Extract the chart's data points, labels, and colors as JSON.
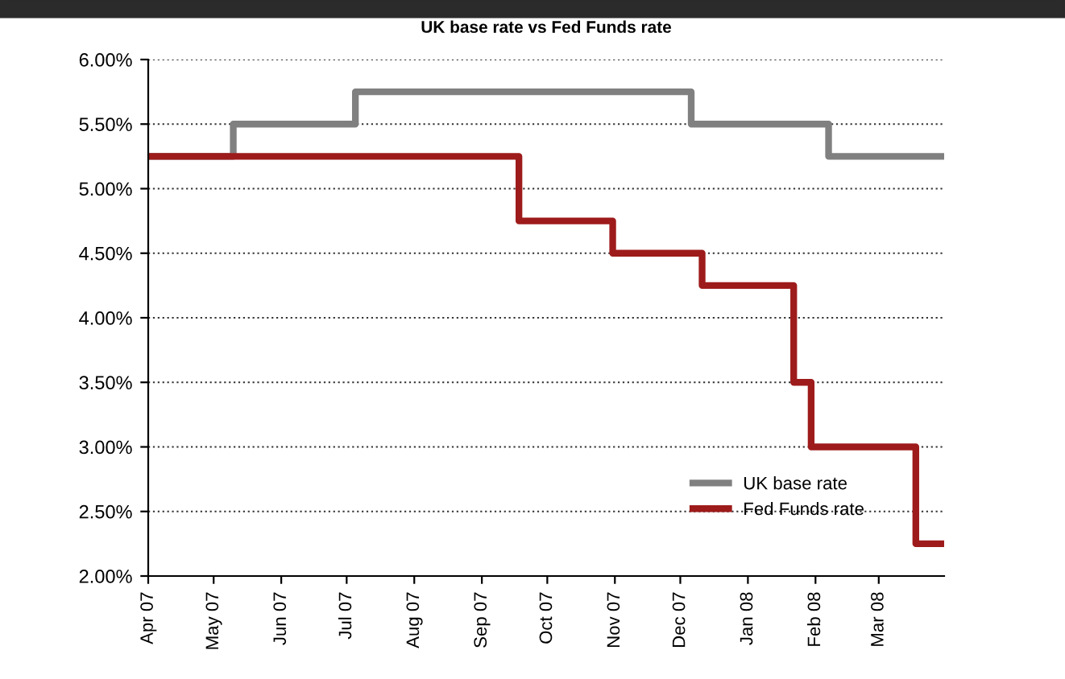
{
  "chart_data": {
    "type": "step",
    "title": "UK base rate vs Fed Funds rate",
    "series": [
      {
        "name": "UK base rate",
        "color": "#808080",
        "x": [
          "2007-04-01",
          "2007-05-10",
          "2007-07-05",
          "2007-12-06",
          "2008-02-07",
          "2008-03-31"
        ],
        "values": [
          5.25,
          5.5,
          5.75,
          5.5,
          5.25,
          5.25
        ]
      },
      {
        "name": "Fed Funds rate",
        "color": "#9e1b1b",
        "x": [
          "2007-04-01",
          "2007-09-18",
          "2007-10-31",
          "2007-12-11",
          "2008-01-22",
          "2008-01-30",
          "2008-03-18",
          "2008-03-31"
        ],
        "values": [
          5.25,
          4.75,
          4.5,
          4.25,
          3.5,
          3.0,
          2.25,
          2.25
        ]
      }
    ],
    "xlim": [
      "2007-04-01",
      "2008-03-31"
    ],
    "xticks": [
      {
        "value": "2007-04-01",
        "label": "Apr 07"
      },
      {
        "value": "2007-05-01",
        "label": "May 07"
      },
      {
        "value": "2007-06-01",
        "label": "Jun 07"
      },
      {
        "value": "2007-07-01",
        "label": "Jul 07"
      },
      {
        "value": "2007-08-01",
        "label": "Aug 07"
      },
      {
        "value": "2007-09-01",
        "label": "Sep 07"
      },
      {
        "value": "2007-10-01",
        "label": "Oct 07"
      },
      {
        "value": "2007-11-01",
        "label": "Nov 07"
      },
      {
        "value": "2007-12-01",
        "label": "Dec 07"
      },
      {
        "value": "2008-01-01",
        "label": "Jan 08"
      },
      {
        "value": "2008-02-01",
        "label": "Feb 08"
      },
      {
        "value": "2008-03-01",
        "label": "Mar 08"
      }
    ],
    "ylim": [
      2.0,
      6.0
    ],
    "yticks": [
      {
        "value": 2.0,
        "label": "2.00%"
      },
      {
        "value": 2.5,
        "label": "2.50%"
      },
      {
        "value": 3.0,
        "label": "3.00%"
      },
      {
        "value": 3.5,
        "label": "3.50%"
      },
      {
        "value": 4.0,
        "label": "4.00%"
      },
      {
        "value": 4.5,
        "label": "4.50%"
      },
      {
        "value": 5.0,
        "label": "5.00%"
      },
      {
        "value": 5.5,
        "label": "5.50%"
      },
      {
        "value": 6.0,
        "label": "6.00%"
      }
    ],
    "grid": "y",
    "legend": "bottom right",
    "line_style": "solid"
  }
}
